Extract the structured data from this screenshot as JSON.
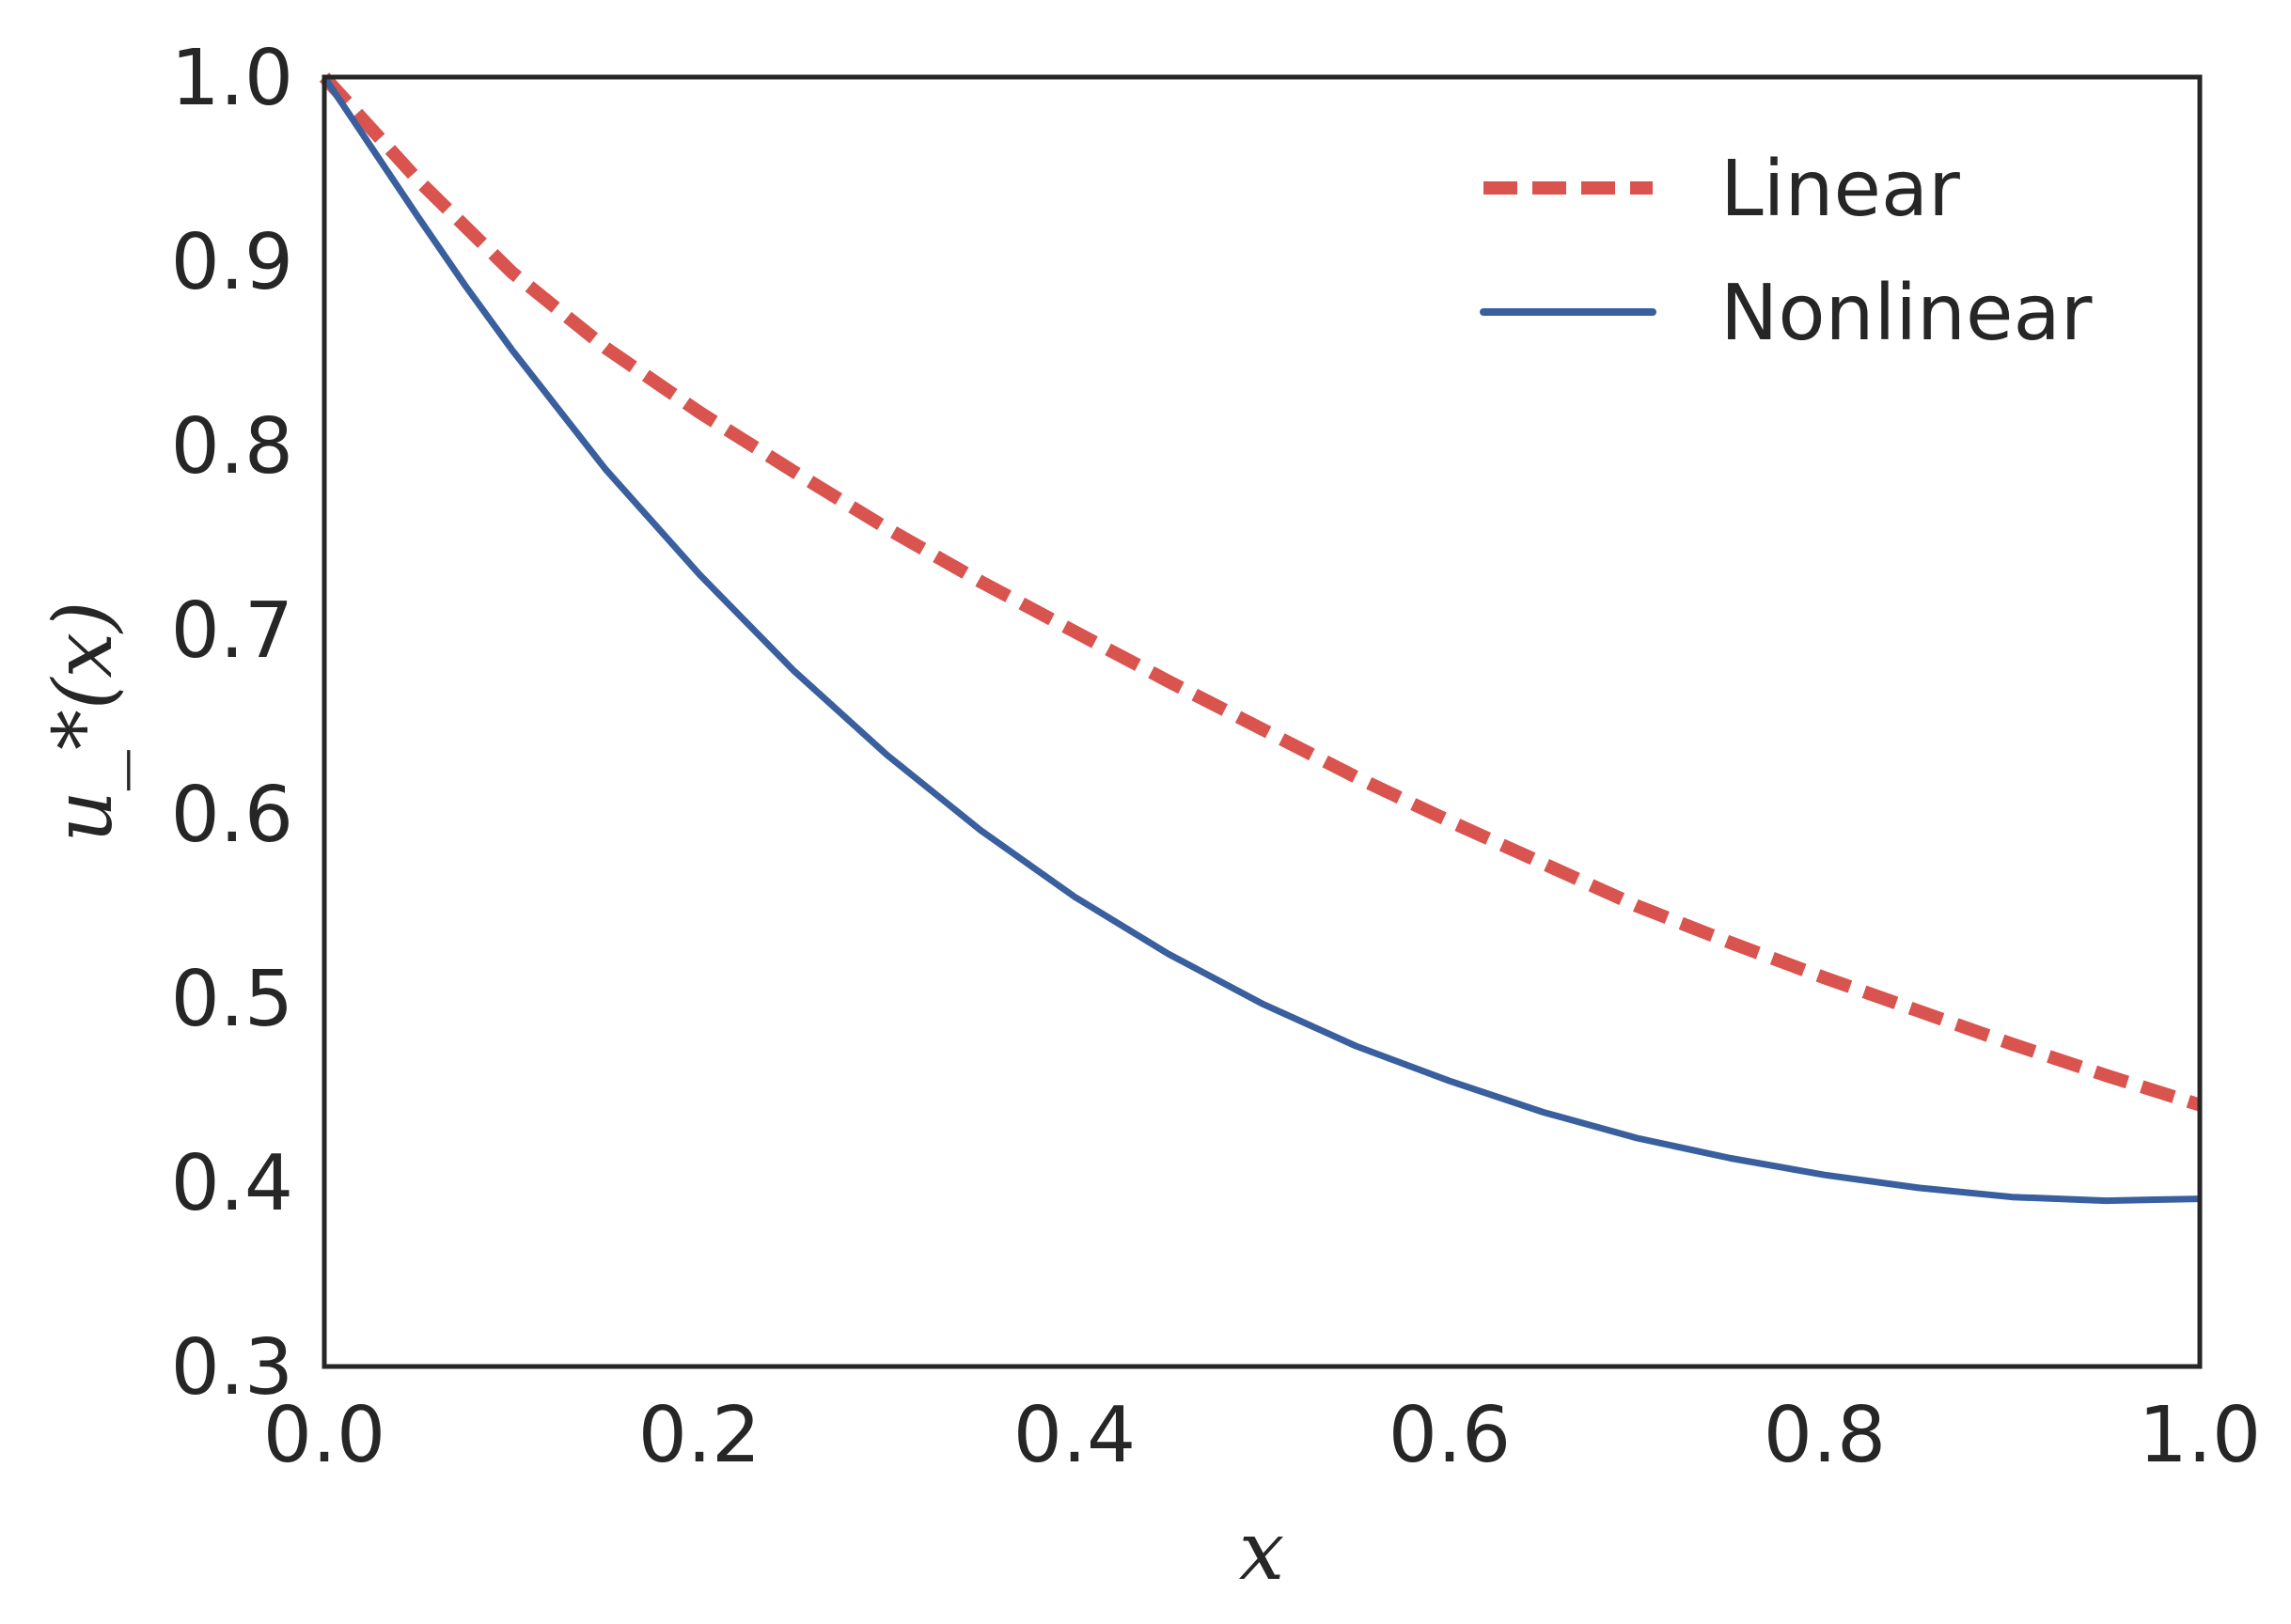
{
  "chart_data": {
    "type": "line",
    "xlabel": "x",
    "ylabel": "u_*(x)",
    "xlim": [
      0.0,
      1.0
    ],
    "ylim": [
      0.3,
      1.0
    ],
    "x_ticks": [
      "0.0",
      "0.2",
      "0.4",
      "0.6",
      "0.8",
      "1.0"
    ],
    "y_ticks": [
      "0.3",
      "0.4",
      "0.5",
      "0.6",
      "0.7",
      "0.8",
      "0.9",
      "1.0"
    ],
    "grid": false,
    "legend_position": "top-right",
    "series": [
      {
        "name": "Linear",
        "style": "dashed",
        "color": "#d9534f",
        "x": [
          0.0,
          0.05,
          0.1,
          0.15,
          0.2,
          0.25,
          0.3,
          0.35,
          0.4,
          0.45,
          0.5,
          0.55,
          0.6,
          0.65,
          0.7,
          0.75,
          0.8,
          0.85,
          0.9,
          0.95,
          1.0
        ],
        "y": [
          1.0,
          0.944,
          0.894,
          0.853,
          0.818,
          0.786,
          0.755,
          0.726,
          0.699,
          0.672,
          0.646,
          0.62,
          0.596,
          0.573,
          0.55,
          0.53,
          0.511,
          0.493,
          0.475,
          0.458,
          0.442
        ]
      },
      {
        "name": "Nonlinear",
        "style": "solid",
        "color": "#3a5f9e",
        "x": [
          0.0,
          0.025,
          0.05,
          0.075,
          0.1,
          0.15,
          0.2,
          0.25,
          0.3,
          0.35,
          0.4,
          0.45,
          0.5,
          0.55,
          0.6,
          0.65,
          0.7,
          0.75,
          0.8,
          0.85,
          0.9,
          0.95,
          1.0
        ],
        "y": [
          1.0,
          0.962,
          0.924,
          0.887,
          0.852,
          0.787,
          0.73,
          0.678,
          0.632,
          0.591,
          0.555,
          0.524,
          0.497,
          0.474,
          0.455,
          0.438,
          0.424,
          0.413,
          0.404,
          0.397,
          0.392,
          0.39,
          0.391
        ]
      }
    ]
  }
}
